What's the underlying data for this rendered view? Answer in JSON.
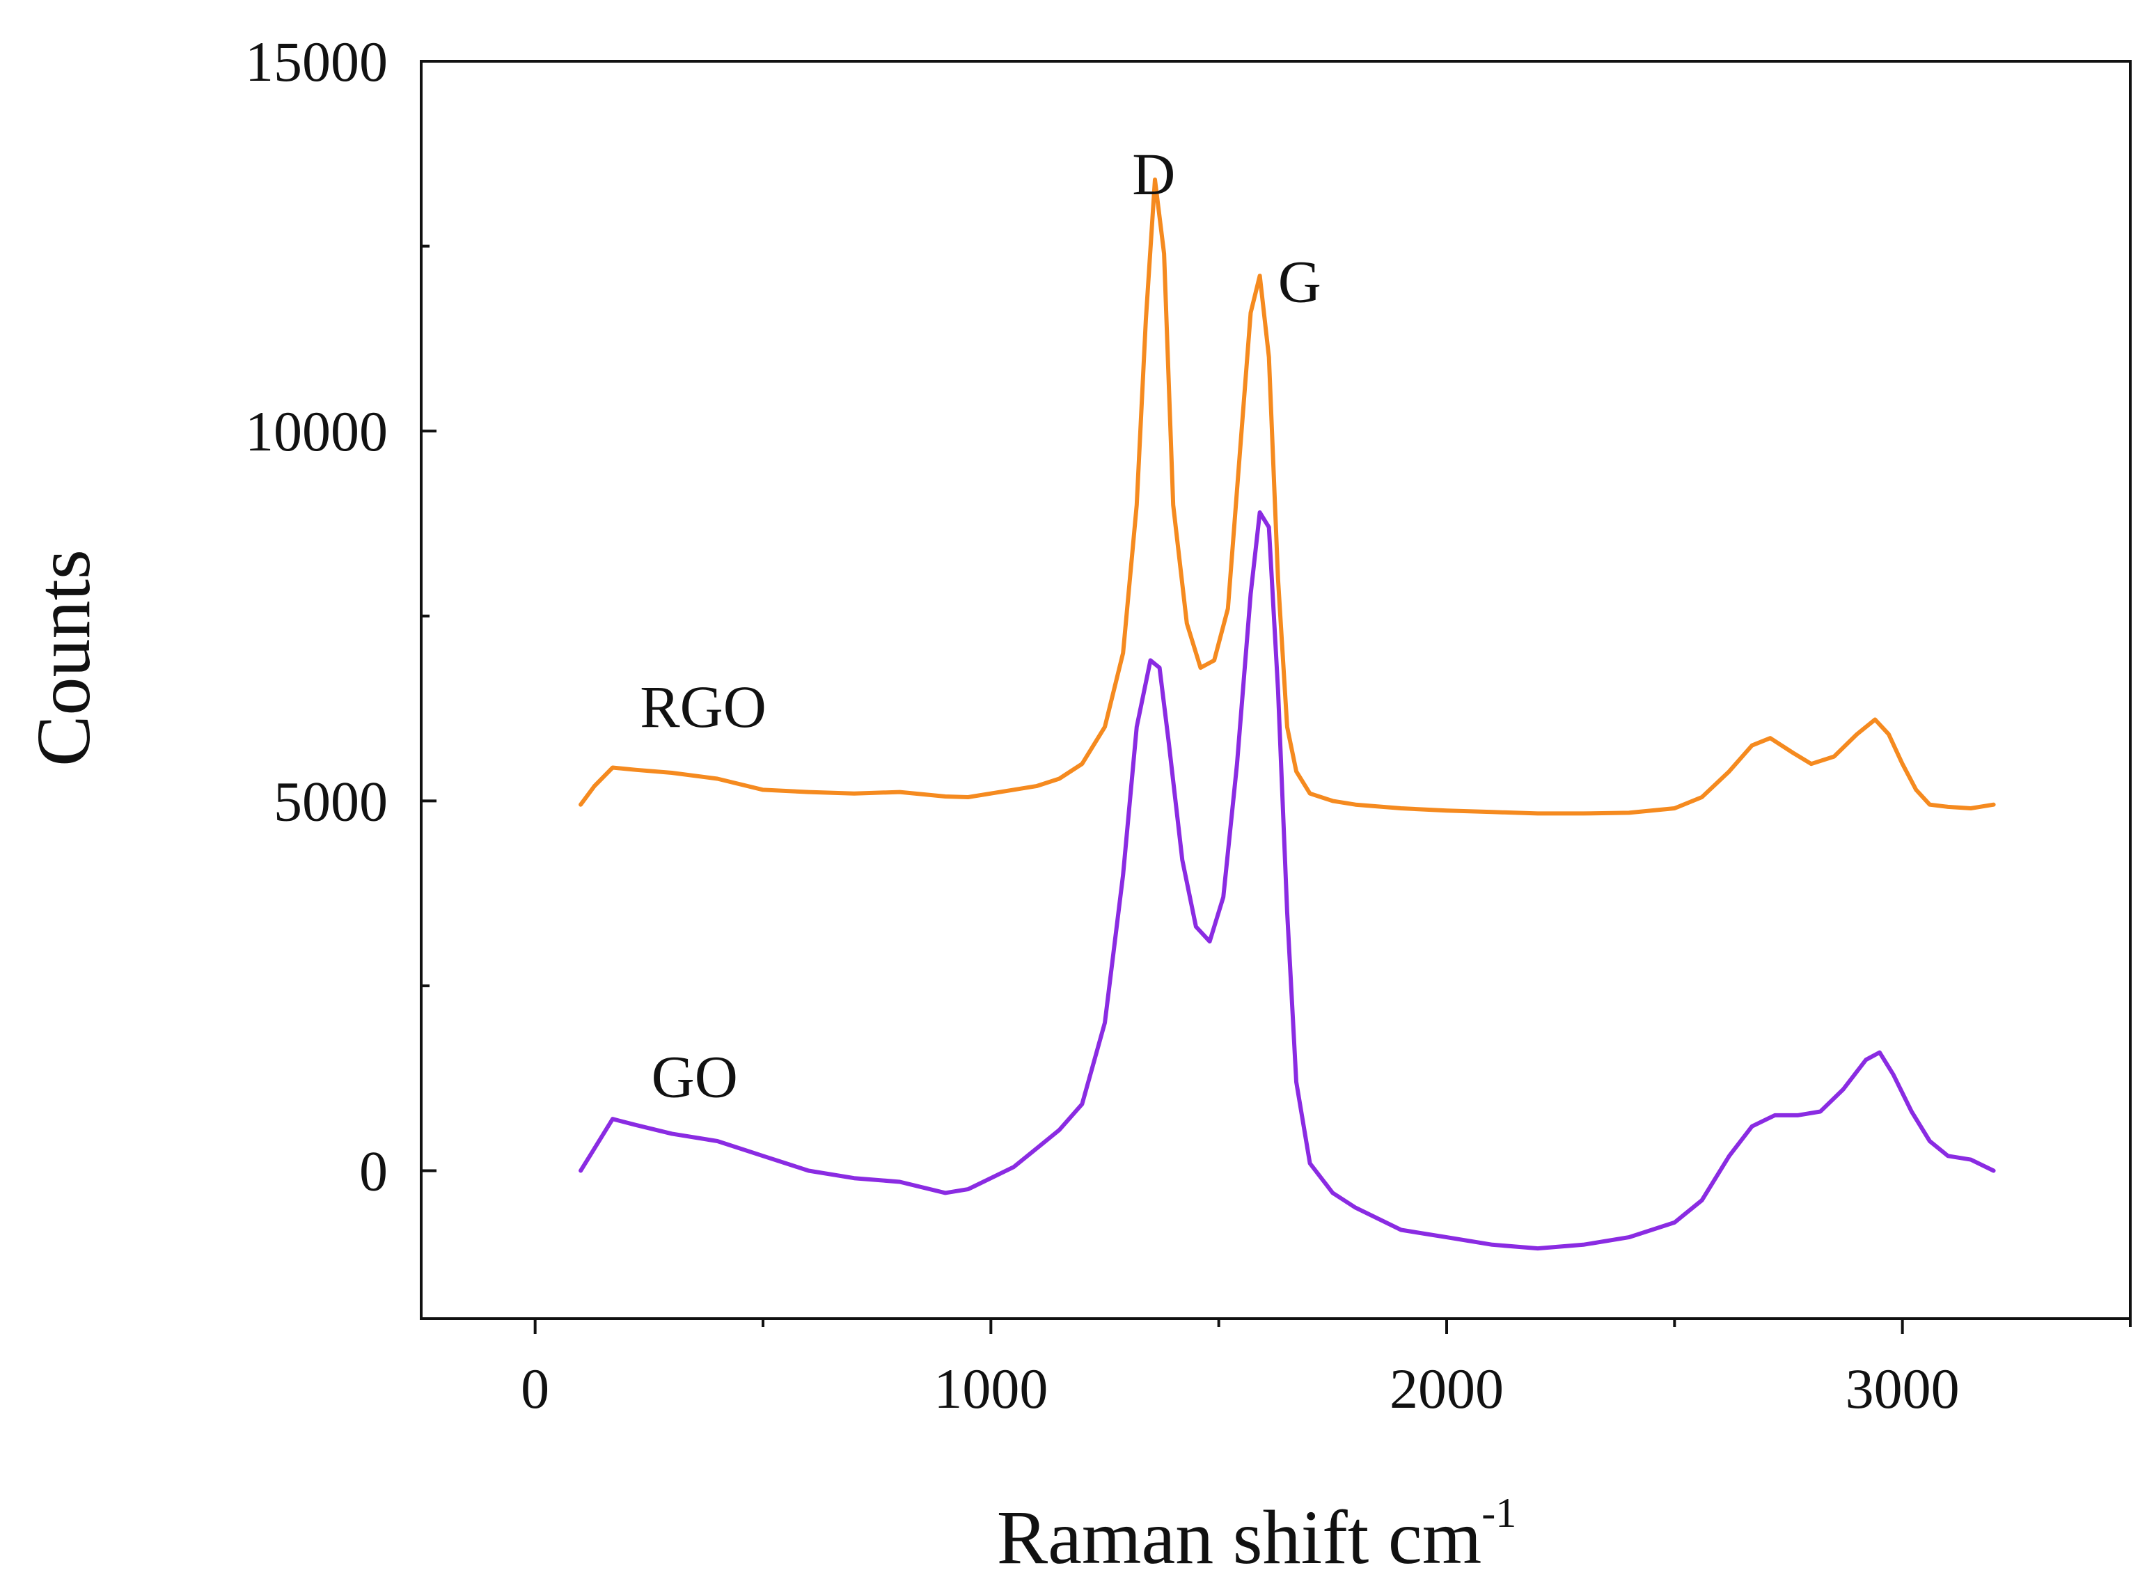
{
  "chart_data": {
    "type": "line",
    "title": "",
    "xlabel": "Raman shift cm",
    "xlabel_superscript": "-1",
    "ylabel": "Counts",
    "xlim": [
      -250,
      3500
    ],
    "ylim": [
      -2000,
      15000
    ],
    "xticks": [
      0,
      1000,
      2000,
      3000
    ],
    "xtick_labels": [
      "0",
      "1000",
      "2000",
      "3000"
    ],
    "yticks": [
      0,
      5000,
      10000,
      15000
    ],
    "ytick_labels": [
      "0",
      "5000",
      "10000",
      "15000"
    ],
    "grid": false,
    "series": [
      {
        "name": "RGO",
        "color": "#f58a1f",
        "x": [
          100,
          130,
          170,
          220,
          300,
          400,
          500,
          600,
          700,
          800,
          900,
          950,
          1000,
          1100,
          1150,
          1200,
          1250,
          1290,
          1320,
          1340,
          1360,
          1380,
          1400,
          1430,
          1460,
          1490,
          1520,
          1550,
          1570,
          1590,
          1610,
          1630,
          1650,
          1670,
          1700,
          1750,
          1800,
          1900,
          2000,
          2100,
          2200,
          2300,
          2400,
          2500,
          2560,
          2620,
          2670,
          2710,
          2760,
          2800,
          2850,
          2900,
          2940,
          2970,
          3000,
          3030,
          3060,
          3100,
          3150,
          3200
        ],
        "y": [
          4950,
          5200,
          5450,
          5420,
          5380,
          5300,
          5150,
          5120,
          5100,
          5120,
          5060,
          5050,
          5100,
          5200,
          5300,
          5500,
          6000,
          7000,
          9000,
          11500,
          13400,
          12400,
          9000,
          7400,
          6800,
          6900,
          7600,
          10000,
          11600,
          12100,
          11000,
          8000,
          6000,
          5400,
          5100,
          5000,
          4950,
          4900,
          4870,
          4850,
          4830,
          4830,
          4840,
          4900,
          5050,
          5400,
          5750,
          5850,
          5650,
          5500,
          5600,
          5900,
          6100,
          5900,
          5500,
          5150,
          4950,
          4920,
          4900,
          4950
        ]
      },
      {
        "name": "GO",
        "color": "#8a2be2",
        "x": [
          100,
          130,
          170,
          220,
          300,
          400,
          500,
          600,
          700,
          800,
          900,
          950,
          1000,
          1050,
          1100,
          1150,
          1200,
          1250,
          1290,
          1320,
          1350,
          1370,
          1390,
          1420,
          1450,
          1480,
          1510,
          1540,
          1570,
          1590,
          1610,
          1630,
          1650,
          1670,
          1700,
          1750,
          1800,
          1900,
          2000,
          2100,
          2200,
          2300,
          2400,
          2500,
          2560,
          2620,
          2670,
          2720,
          2770,
          2820,
          2870,
          2920,
          2950,
          2980,
          3020,
          3060,
          3100,
          3150,
          3200
        ],
        "y": [
          0,
          300,
          700,
          620,
          500,
          400,
          200,
          0,
          -100,
          -150,
          -300,
          -250,
          -100,
          50,
          300,
          550,
          900,
          2000,
          4000,
          6000,
          6900,
          6800,
          5800,
          4200,
          3300,
          3100,
          3700,
          5500,
          7800,
          8900,
          8700,
          6500,
          3500,
          1200,
          100,
          -300,
          -500,
          -800,
          -900,
          -1000,
          -1050,
          -1000,
          -900,
          -700,
          -400,
          200,
          600,
          750,
          750,
          800,
          1100,
          1500,
          1600,
          1300,
          800,
          400,
          200,
          150,
          0
        ]
      }
    ],
    "annotations": [
      {
        "text": "D",
        "x": 1310,
        "y": 13200
      },
      {
        "text": "G",
        "x": 1630,
        "y": 11750
      },
      {
        "text": "RGO",
        "x": 230,
        "y": 6000
      },
      {
        "text": "GO",
        "x": 255,
        "y": 1000
      }
    ]
  }
}
